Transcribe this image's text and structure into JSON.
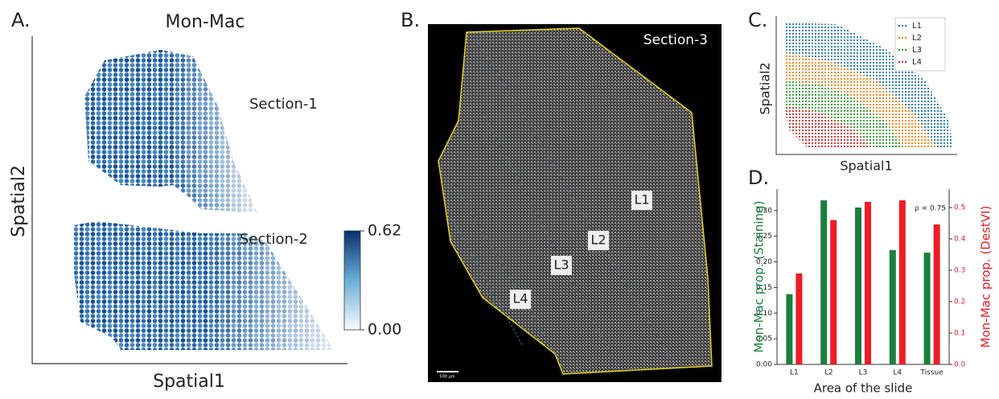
{
  "panels": {
    "a": {
      "label": "A.",
      "title": "Mon-Mac",
      "sections": [
        "Section-1",
        "Section-2"
      ],
      "x_label": "Spatial1",
      "y_label": "Spatial2",
      "colorbar": {
        "lim": [
          0,
          0.62
        ],
        "ticks": [
          {
            "value": 0,
            "label": "0.00"
          },
          0.62
        ]
      }
    },
    "b": {
      "label": "B.",
      "section": "Section-3",
      "regions": [
        "L1",
        "L2",
        "L3",
        "L4"
      ],
      "scale_bar": "500 μm"
    },
    "c": {
      "label": "C.",
      "x_label": "Spatial1",
      "y_label": "Spatial2",
      "legend": [
        {
          "name": "L1",
          "color": "#1f77b4"
        },
        {
          "name": "L2",
          "color": "#ff7f0e"
        },
        {
          "name": "L3",
          "color": "#2ca02c"
        },
        {
          "name": "L4",
          "color": "#d62728"
        }
      ]
    },
    "d": {
      "label": "D."
    }
  },
  "chart_data": {
    "type": "bar",
    "x_label": "Area of the slide",
    "y_label": "Mon-Mac prop. (Staining)",
    "y2_label": "Mon-Mac prop. (DestVI)",
    "annotation": "ρ = 0.75",
    "categories": [
      "L1",
      "L2",
      "L3",
      "L4",
      "Tissue"
    ],
    "series": [
      {
        "color": "#1a7f3c",
        "values": [
          0.137,
          0.32,
          0.306,
          0.223,
          0.218
        ]
      },
      {
        "color": "#ee1c25",
        "axis": "y2",
        "values": [
          0.29,
          0.46,
          0.518,
          0.523,
          0.446
        ]
      }
    ],
    "ylim": [
      0,
      0.342
    ],
    "yticks": [
      {
        "value": 0,
        "label": "0.00"
      },
      0.05,
      {
        "value": 0.1,
        "label": "0.10"
      },
      0.15,
      {
        "value": 0.2,
        "label": "0.20"
      },
      0.25,
      {
        "value": 0.3,
        "label": "0.30"
      }
    ],
    "y2lim": [
      0,
      0.559
    ],
    "y2ticks": [
      {
        "value": 0,
        "label": "0.0"
      },
      0.1,
      0.2,
      0.3,
      0.4,
      0.5
    ]
  }
}
